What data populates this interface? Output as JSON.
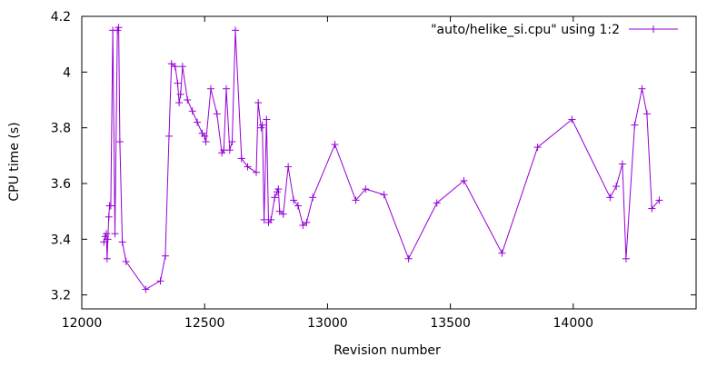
{
  "chart_data": {
    "type": "line",
    "title": "",
    "xlabel": "Revision number",
    "ylabel": "CPU time (s)",
    "xlim": [
      12000,
      14500
    ],
    "ylim": [
      3.15,
      4.2
    ],
    "xticks": [
      12000,
      12500,
      13000,
      13500,
      14000
    ],
    "yticks": [
      3.2,
      3.4,
      3.6,
      3.8,
      4,
      4.2
    ],
    "xtick_labels": [
      "12000",
      "12500",
      "13000",
      "13500",
      "14000"
    ],
    "ytick_labels": [
      "3.2",
      "3.4",
      "3.6",
      "3.8",
      "4",
      "4.2"
    ],
    "grid": false,
    "legend_position": "top-right",
    "series": [
      {
        "name": "\"auto/helike_si.cpu\" using 1:2",
        "color": "#9400d3",
        "marker": "plus",
        "points": [
          [
            12090,
            3.39
          ],
          [
            12095,
            3.41
          ],
          [
            12100,
            3.42
          ],
          [
            12103,
            3.33
          ],
          [
            12106,
            3.4
          ],
          [
            12110,
            3.48
          ],
          [
            12113,
            3.52
          ],
          [
            12118,
            3.52
          ],
          [
            12126,
            4.15
          ],
          [
            12135,
            3.42
          ],
          [
            12145,
            4.15
          ],
          [
            12150,
            4.16
          ],
          [
            12155,
            3.75
          ],
          [
            12165,
            3.39
          ],
          [
            12180,
            3.32
          ],
          [
            12260,
            3.22
          ],
          [
            12320,
            3.25
          ],
          [
            12340,
            3.34
          ],
          [
            12355,
            3.77
          ],
          [
            12365,
            4.03
          ],
          [
            12380,
            4.02
          ],
          [
            12390,
            3.96
          ],
          [
            12396,
            3.89
          ],
          [
            12402,
            3.92
          ],
          [
            12410,
            4.02
          ],
          [
            12430,
            3.9
          ],
          [
            12450,
            3.86
          ],
          [
            12470,
            3.82
          ],
          [
            12490,
            3.78
          ],
          [
            12500,
            3.77
          ],
          [
            12505,
            3.75
          ],
          [
            12525,
            3.94
          ],
          [
            12550,
            3.85
          ],
          [
            12570,
            3.71
          ],
          [
            12578,
            3.72
          ],
          [
            12588,
            3.94
          ],
          [
            12602,
            3.72
          ],
          [
            12612,
            3.75
          ],
          [
            12625,
            4.15
          ],
          [
            12650,
            3.69
          ],
          [
            12675,
            3.66
          ],
          [
            12710,
            3.64
          ],
          [
            12718,
            3.89
          ],
          [
            12730,
            3.8
          ],
          [
            12735,
            3.81
          ],
          [
            12742,
            3.47
          ],
          [
            12752,
            3.83
          ],
          [
            12760,
            3.46
          ],
          [
            12770,
            3.47
          ],
          [
            12785,
            3.55
          ],
          [
            12795,
            3.57
          ],
          [
            12800,
            3.58
          ],
          [
            12805,
            3.5
          ],
          [
            12820,
            3.49
          ],
          [
            12840,
            3.66
          ],
          [
            12862,
            3.54
          ],
          [
            12880,
            3.52
          ],
          [
            12900,
            3.45
          ],
          [
            12915,
            3.46
          ],
          [
            12940,
            3.55
          ],
          [
            13030,
            3.74
          ],
          [
            13115,
            3.54
          ],
          [
            13155,
            3.58
          ],
          [
            13230,
            3.56
          ],
          [
            13330,
            3.33
          ],
          [
            13445,
            3.53
          ],
          [
            13555,
            3.61
          ],
          [
            13710,
            3.35
          ],
          [
            13855,
            3.73
          ],
          [
            13995,
            3.83
          ],
          [
            14150,
            3.55
          ],
          [
            14175,
            3.59
          ],
          [
            14200,
            3.67
          ],
          [
            14215,
            3.33
          ],
          [
            14250,
            3.81
          ],
          [
            14280,
            3.94
          ],
          [
            14300,
            3.85
          ],
          [
            14320,
            3.51
          ],
          [
            14350,
            3.54
          ]
        ]
      }
    ]
  }
}
